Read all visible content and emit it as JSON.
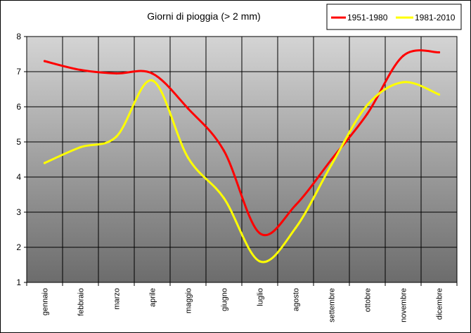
{
  "chart_data": {
    "type": "line",
    "title": "Giorni di pioggia (> 2 mm)",
    "categories": [
      "gennaio",
      "febbraio",
      "marzo",
      "aprile",
      "maggio",
      "giugno",
      "luglio",
      "agosto",
      "settembre",
      "ottobre",
      "novembre",
      "dicembre"
    ],
    "ylim": [
      1,
      8
    ],
    "yticks": [
      1,
      2,
      3,
      4,
      5,
      6,
      7,
      8
    ],
    "grid": true,
    "legend_position": "top-right",
    "series": [
      {
        "name": "1951-1980",
        "color": "#ff0000",
        "values": [
          7.3,
          7.05,
          6.95,
          6.95,
          5.95,
          4.75,
          2.4,
          3.2,
          4.5,
          5.8,
          7.45,
          7.55
        ]
      },
      {
        "name": "1981-2010",
        "color": "#ffff00",
        "values": [
          4.4,
          4.85,
          5.15,
          6.75,
          4.55,
          3.4,
          1.6,
          2.55,
          4.35,
          6.05,
          6.7,
          6.35
        ]
      }
    ]
  }
}
